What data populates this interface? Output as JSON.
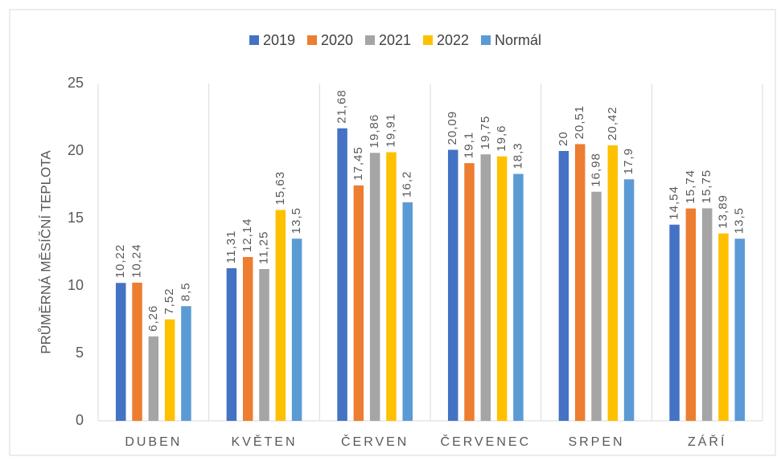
{
  "chart_data": {
    "type": "bar",
    "y_label": "PRŮMĚRNÁ MĚSÍČNÍ TEPLOTA",
    "categories": [
      "DUBEN",
      "KVĚTEN",
      "ČERVEN",
      "ČERVENEC",
      "SRPEN",
      "ZÁŘÍ"
    ],
    "series": [
      {
        "name": "2019",
        "color": "#4472c4",
        "values": [
          10.22,
          11.31,
          21.68,
          20.09,
          20,
          14.54
        ],
        "value_labels": [
          "10,22",
          "11,31",
          "21,68",
          "20,09",
          "20",
          "14,54"
        ]
      },
      {
        "name": "2020",
        "color": "#ed7d31",
        "values": [
          10.24,
          12.14,
          17.45,
          19.1,
          20.51,
          15.74
        ],
        "value_labels": [
          "10,24",
          "12,14",
          "17,45",
          "19,1",
          "20,51",
          "15,74"
        ]
      },
      {
        "name": "2021",
        "color": "#a5a5a5",
        "values": [
          6.26,
          11.25,
          19.86,
          19.75,
          16.98,
          15.75
        ],
        "value_labels": [
          "6,26",
          "11,25",
          "19,86",
          "19,75",
          "16,98",
          "15,75"
        ]
      },
      {
        "name": "2022",
        "color": "#ffc000",
        "values": [
          7.52,
          15.63,
          19.91,
          19.6,
          20.42,
          13.89
        ],
        "value_labels": [
          "7,52",
          "15,63",
          "19,91",
          "19,6",
          "20,42",
          "13,89"
        ]
      },
      {
        "name": "Normál",
        "color": "#5b9bd5",
        "values": [
          8.5,
          13.5,
          16.2,
          18.3,
          17.9,
          13.5
        ],
        "value_labels": [
          "8,5",
          "13,5",
          "16,2",
          "18,3",
          "17,9",
          "13,5"
        ]
      }
    ],
    "ylim": [
      0,
      25
    ],
    "yticks": [
      0,
      5,
      10,
      15,
      20,
      25
    ],
    "grid": false,
    "legend": "top"
  }
}
